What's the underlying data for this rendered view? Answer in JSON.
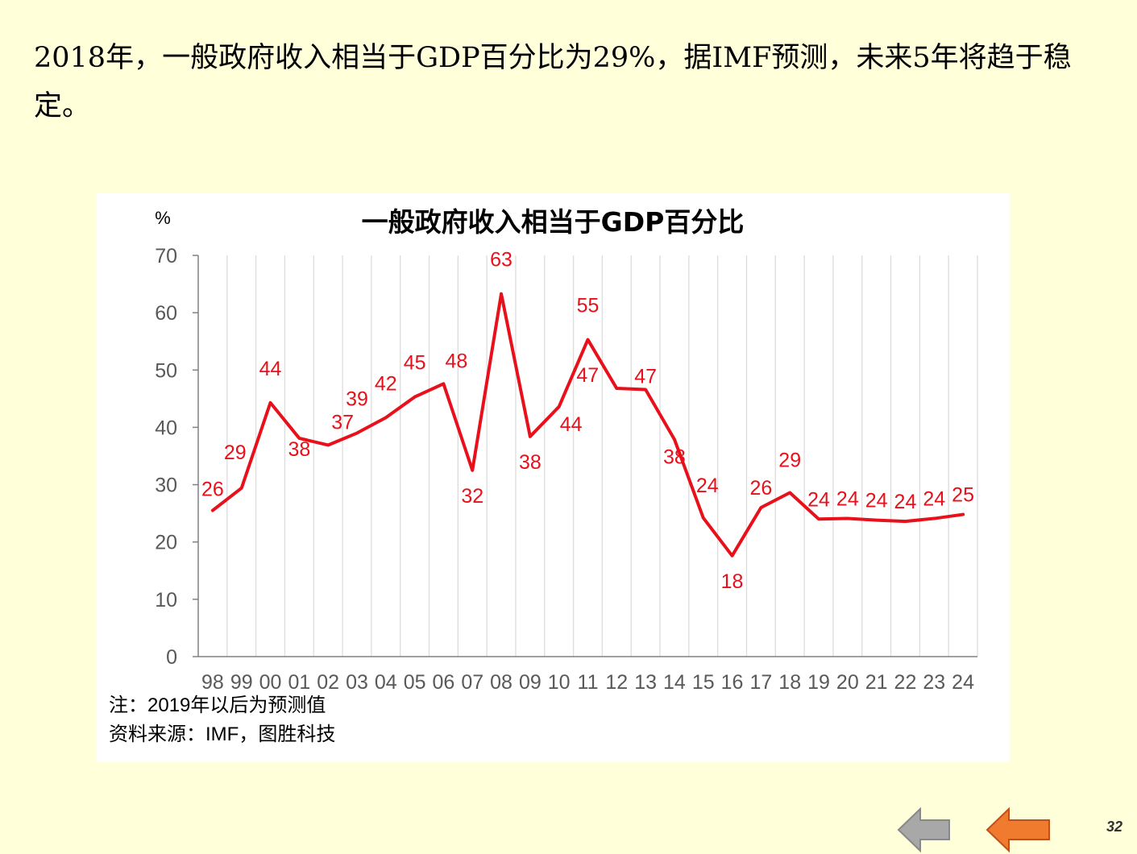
{
  "heading": "2018年，一般政府收入相当于GDP百分比为29%，据IMF预测，未来5年将趋于稳定。",
  "chart_data": {
    "type": "line",
    "title": "一般政府收入相当于GDP百分比",
    "ylabel": "%",
    "xlabel": "",
    "ylim": [
      0,
      70
    ],
    "yticks": [
      0,
      10,
      20,
      30,
      40,
      50,
      60,
      70
    ],
    "grid": "vertical",
    "categories": [
      "98",
      "99",
      "00",
      "01",
      "02",
      "03",
      "04",
      "05",
      "06",
      "07",
      "08",
      "09",
      "10",
      "11",
      "12",
      "13",
      "14",
      "15",
      "16",
      "17",
      "18",
      "19",
      "20",
      "21",
      "22",
      "23",
      "24"
    ],
    "series": [
      {
        "color": "#E8101A",
        "values": [
          25.5,
          29.4,
          44.3,
          38.1,
          36.9,
          39.0,
          41.7,
          45.3,
          47.6,
          32.5,
          63.3,
          38.4,
          43.6,
          55.3,
          46.8,
          46.6,
          37.9,
          24.2,
          17.6,
          26.0,
          28.6,
          24.0,
          24.1,
          23.8,
          23.6,
          24.1,
          24.8
        ],
        "labels": [
          "26",
          "29",
          "44",
          "38",
          "37",
          "39",
          "42",
          "45",
          "48",
          "32",
          "63",
          "38",
          "44",
          "55",
          "47",
          "47",
          "38",
          "24",
          "18",
          "26",
          "29",
          "24",
          "24",
          "24",
          "24",
          "24",
          "25"
        ]
      }
    ]
  },
  "notes": {
    "note1": "注：2019年以后为预测值",
    "note2": "资料来源：IMF，图胜科技"
  },
  "nav": {
    "back_color": "#A8A8A8",
    "forward_color": "#F07A2E"
  },
  "page_number": "32"
}
